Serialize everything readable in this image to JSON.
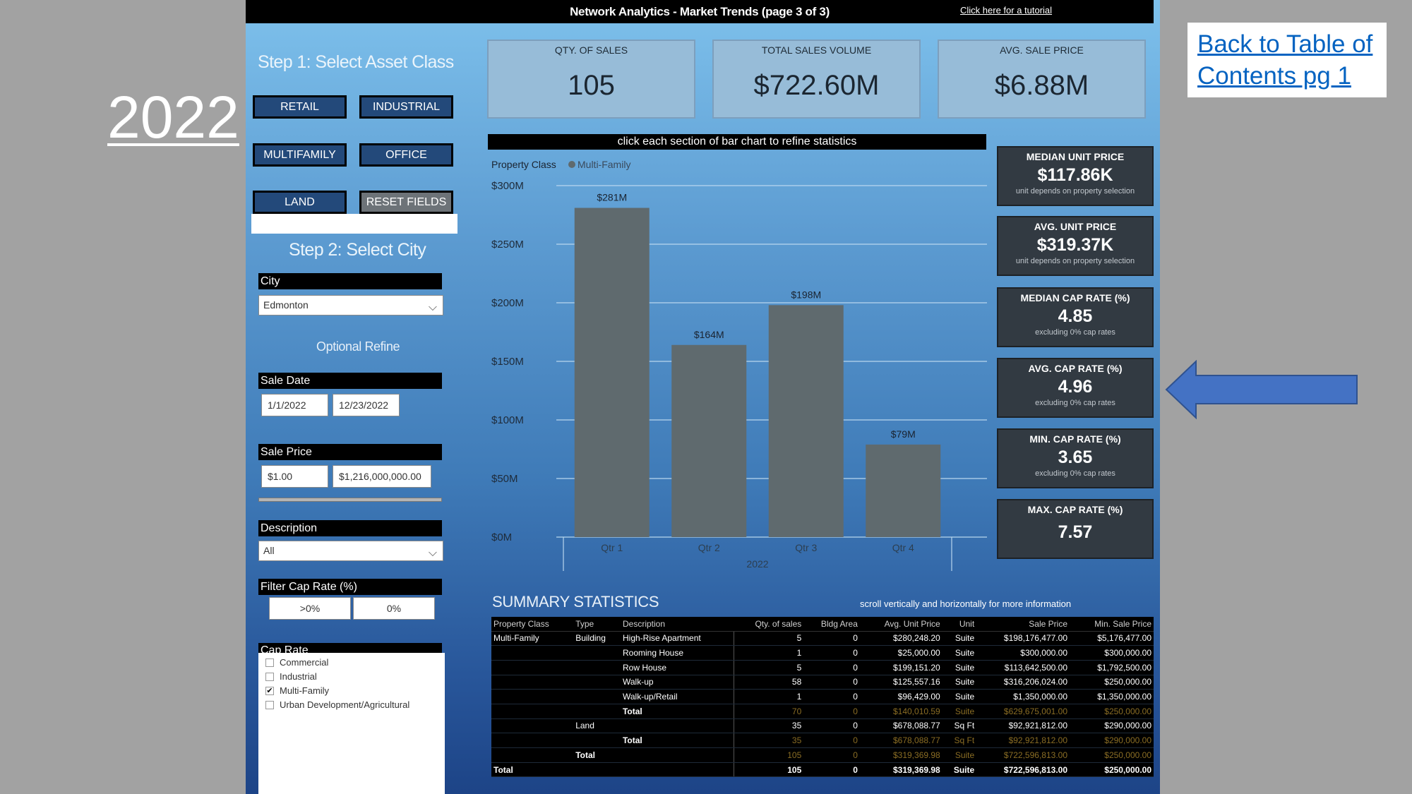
{
  "slide": {
    "year": "2022",
    "toc_link": "Back to Table of Contents pg 1",
    "arrow_color": "#4472c4"
  },
  "dashboard": {
    "title": "Network Analytics - Market Trends (page 3 of 3)",
    "tutorial_link": "Click here for a tutorial",
    "step1": {
      "title": "Step 1: Select Asset Class",
      "buttons": {
        "retail": "RETAIL",
        "industrial": "INDUSTRIAL",
        "multifamily": "MULTIFAMILY",
        "office": "OFFICE",
        "land": "LAND",
        "reset": "RESET FIELDS"
      }
    },
    "step2": {
      "title": "Step 2: Select City",
      "city_label": "City",
      "city_value": "Edmonton"
    },
    "optional_refine": "Optional Refine",
    "sale_date": {
      "label": "Sale Date",
      "from": "1/1/2022",
      "to": "12/23/2022"
    },
    "sale_price": {
      "label": "Sale Price",
      "from": "$1.00",
      "to": "$1,216,000,000.00"
    },
    "description": {
      "label": "Description",
      "value": "All"
    },
    "filter_cap_rate": {
      "label": "Filter Cap Rate (%)",
      "options": [
        ">0%",
        "0%"
      ]
    },
    "cap_rate_list": {
      "label": "Cap Rate",
      "items": [
        {
          "label": "Commercial",
          "checked": false
        },
        {
          "label": "Industrial",
          "checked": false
        },
        {
          "label": "Multi-Family",
          "checked": true
        },
        {
          "label": "Urban Development/Agricultural",
          "checked": false
        }
      ]
    },
    "kpis": [
      {
        "label": "QTY. OF SALES",
        "value": "105"
      },
      {
        "label": "TOTAL SALES VOLUME",
        "value": "$722.60M"
      },
      {
        "label": "AVG. SALE PRICE",
        "value": "$6.88M"
      }
    ],
    "cards": [
      {
        "label": "MEDIAN UNIT PRICE",
        "value": "$117.86K",
        "note": "unit depends on property selection"
      },
      {
        "label": "AVG. UNIT PRICE",
        "value": "$319.37K",
        "note": "unit depends on property selection"
      },
      {
        "label": "MEDIAN CAP RATE (%)",
        "value": "4.85",
        "note": "excluding 0% cap rates"
      },
      {
        "label": "AVG. CAP RATE (%)",
        "value": "4.96",
        "note": "excluding 0% cap rates"
      },
      {
        "label": "MIN. CAP RATE (%)",
        "value": "3.65",
        "note": "excluding 0% cap rates"
      },
      {
        "label": "MAX. CAP RATE (%)",
        "value": "7.57",
        "note": ""
      }
    ],
    "chart_header": "click each section of bar chart to refine statistics",
    "summary": {
      "title": "SUMMARY STATISTICS",
      "note": "scroll vertically and horizontally for more information",
      "columns": [
        "Property Class",
        "Type",
        "Description",
        "Qty. of sales",
        "Bldg Area",
        "Avg. Unit Price",
        "Unit",
        "Sale Price",
        "Min. Sale Price"
      ],
      "rows": [
        {
          "kind": "row",
          "cells": [
            "Multi-Family",
            "Building",
            "High-Rise Apartment",
            "5",
            "0",
            "$280,248.20",
            "Suite",
            "$198,176,477.00",
            "$5,176,477.00"
          ]
        },
        {
          "kind": "row",
          "cells": [
            "",
            "",
            "Rooming House",
            "1",
            "0",
            "$25,000.00",
            "Suite",
            "$300,000.00",
            "$300,000.00"
          ]
        },
        {
          "kind": "row",
          "cells": [
            "",
            "",
            "Row House",
            "5",
            "0",
            "$199,151.20",
            "Suite",
            "$113,642,500.00",
            "$1,792,500.00"
          ]
        },
        {
          "kind": "row",
          "cells": [
            "",
            "",
            "Walk-up",
            "58",
            "0",
            "$125,557.16",
            "Suite",
            "$316,206,024.00",
            "$250,000.00"
          ]
        },
        {
          "kind": "row",
          "cells": [
            "",
            "",
            "Walk-up/Retail",
            "1",
            "0",
            "$96,429.00",
            "Suite",
            "$1,350,000.00",
            "$1,350,000.00"
          ]
        },
        {
          "kind": "sub",
          "cells": [
            "",
            "",
            "Total",
            "70",
            "0",
            "$140,010.59",
            "Suite",
            "$629,675,001.00",
            "$250,000.00"
          ]
        },
        {
          "kind": "row",
          "cells": [
            "",
            "Land",
            "",
            "35",
            "0",
            "$678,088.77",
            "Sq Ft",
            "$92,921,812.00",
            "$290,000.00"
          ]
        },
        {
          "kind": "sub",
          "cells": [
            "",
            "",
            "Total",
            "35",
            "0",
            "$678,088.77",
            "Sq Ft",
            "$92,921,812.00",
            "$290,000.00"
          ]
        },
        {
          "kind": "sub",
          "cells": [
            "",
            "Total",
            "",
            "105",
            "0",
            "$319,369.98",
            "Suite",
            "$722,596,813.00",
            "$250,000.00"
          ]
        },
        {
          "kind": "grand",
          "cells": [
            "Total",
            "",
            "",
            "105",
            "0",
            "$319,369.98",
            "Suite",
            "$722,596,813.00",
            "$250,000.00"
          ]
        }
      ]
    }
  },
  "chart_data": {
    "type": "bar",
    "legend_title": "Property Class",
    "legend_placement": "top-left",
    "categories": [
      "Qtr 1",
      "Qtr 2",
      "Qtr 3",
      "Qtr 4"
    ],
    "x_group_label": "2022",
    "series": [
      {
        "name": "Multi-Family",
        "values": [
          281,
          164,
          198,
          79
        ],
        "color": "#5f6a6e"
      }
    ],
    "data_labels": [
      "$281M",
      "$164M",
      "$198M",
      "$79M"
    ],
    "yticks": [
      0,
      50,
      100,
      150,
      200,
      250,
      300
    ],
    "ytick_labels": [
      "$0M",
      "$50M",
      "$100M",
      "$150M",
      "$200M",
      "$250M",
      "$300M"
    ],
    "ylim": [
      0,
      300
    ],
    "grid": true
  }
}
